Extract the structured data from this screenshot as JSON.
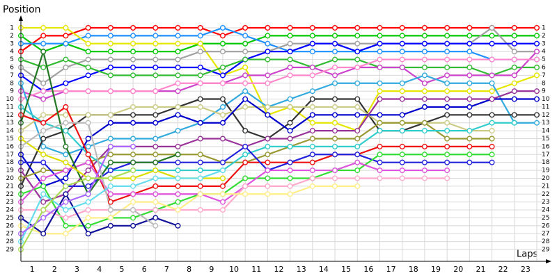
{
  "chart_data": {
    "type": "line",
    "y_label": "Position",
    "x_label": "Laps",
    "x": [
      0,
      1,
      2,
      3,
      4,
      5,
      6,
      7,
      8,
      9,
      10,
      11,
      12,
      13,
      14,
      15,
      16,
      17,
      18,
      19,
      20,
      21,
      22,
      23
    ],
    "xlim": [
      0,
      23
    ],
    "xticks": [
      {
        "value": 0.5,
        "label": "1"
      },
      {
        "value": 1.5,
        "label": "2"
      },
      {
        "value": 2.5,
        "label": "3"
      },
      {
        "value": 3.5,
        "label": "4"
      },
      {
        "value": 4.5,
        "label": "5"
      },
      {
        "value": 5.5,
        "label": "6"
      },
      {
        "value": 6.5,
        "label": "7"
      },
      {
        "value": 7.5,
        "label": "8"
      },
      {
        "value": 8.5,
        "label": "9"
      },
      {
        "value": 9.5,
        "label": "10"
      },
      {
        "value": 10.5,
        "label": "11"
      },
      {
        "value": 11.5,
        "label": "12"
      },
      {
        "value": 12.5,
        "label": "13"
      },
      {
        "value": 13.5,
        "label": "14"
      },
      {
        "value": 14.5,
        "label": "15"
      },
      {
        "value": 15.5,
        "label": "16"
      },
      {
        "value": 16.5,
        "label": "17"
      },
      {
        "value": 17.5,
        "label": "18"
      },
      {
        "value": 18.5,
        "label": "19"
      },
      {
        "value": 19.5,
        "label": "20"
      },
      {
        "value": 20.5,
        "label": "21"
      },
      {
        "value": 21.5,
        "label": "22"
      },
      {
        "value": 22.5,
        "label": "23"
      }
    ],
    "ylim": [
      1,
      29
    ],
    "y_inverted": true,
    "yticks": [
      1,
      2,
      3,
      4,
      5,
      6,
      7,
      8,
      9,
      10,
      11,
      12,
      13,
      14,
      15,
      16,
      17,
      18,
      19,
      20,
      21,
      22,
      23,
      24,
      25,
      26,
      27,
      28,
      29
    ],
    "grid": true,
    "series": [
      {
        "color": "#ff0000",
        "values": [
          4,
          2,
          2,
          1,
          1,
          1,
          1,
          1,
          1,
          2,
          1,
          1,
          1,
          1,
          1,
          1,
          1,
          1,
          1,
          1,
          1,
          1,
          1,
          1
        ]
      },
      {
        "color": "#00c800",
        "values": [
          2,
          4,
          3,
          4,
          4,
          4,
          4,
          4,
          3,
          3,
          3,
          2,
          2,
          2,
          2,
          2,
          2,
          2,
          2,
          2,
          2,
          2,
          2,
          2
        ]
      },
      {
        "color": "#1e90ff",
        "values": [
          3,
          3,
          3,
          2,
          2,
          2,
          2,
          2,
          2,
          1,
          2,
          3,
          4,
          4,
          4,
          4,
          4,
          4,
          4,
          4,
          4,
          5,
          5,
          5
        ]
      },
      {
        "color": "#e6e600",
        "values": [
          1,
          1,
          1,
          3,
          3,
          3,
          3,
          3,
          3,
          7,
          6,
          12,
          11,
          13,
          13,
          14,
          9,
          9,
          9,
          9,
          9,
          9,
          8,
          7
        ]
      },
      {
        "color": "#a0a0a0",
        "values": [
          6,
          8,
          6,
          5,
          5,
          5,
          5,
          5,
          4,
          4,
          4,
          4,
          3,
          3,
          3,
          3,
          3,
          3,
          3,
          3,
          3,
          1,
          4,
          4
        ]
      },
      {
        "color": "#0000ff",
        "values": [
          7,
          9,
          8,
          7,
          6,
          6,
          6,
          6,
          6,
          7,
          5,
          4,
          4,
          3,
          3,
          4,
          3,
          3,
          3,
          3,
          3,
          3,
          3,
          3
        ]
      },
      {
        "color": "#33bb33",
        "values": [
          5,
          6,
          5,
          6,
          7,
          7,
          7,
          7,
          7,
          6,
          5,
          5,
          5,
          6,
          5,
          5,
          6,
          6,
          6,
          6,
          6,
          7,
          6,
          6
        ]
      },
      {
        "color": "#cc44cc",
        "values": [
          9,
          10,
          9,
          9,
          9,
          9,
          9,
          9,
          8,
          8,
          7,
          7,
          6,
          6,
          7,
          6,
          6,
          6,
          8,
          7,
          7,
          7,
          7,
          4
        ]
      },
      {
        "color": "#ff88cc",
        "values": [
          10,
          9,
          9,
          9,
          9,
          9,
          9,
          8,
          8,
          8,
          8,
          8,
          7,
          7,
          6,
          6,
          5,
          5,
          5,
          5,
          5,
          5,
          5,
          5
        ]
      },
      {
        "color": "#33aadd",
        "values": [
          8,
          16,
          17,
          16,
          15,
          15,
          15,
          14,
          13,
          11,
          9,
          11,
          10,
          9,
          8,
          8,
          8,
          8,
          7,
          8,
          8,
          8,
          13,
          13
        ]
      },
      {
        "color": "#333333",
        "values": [
          21,
          15,
          14,
          12,
          12,
          12,
          12,
          11,
          10,
          10,
          14,
          15,
          13,
          10,
          10,
          10,
          14,
          14,
          13,
          12,
          12,
          12,
          12,
          12
        ]
      },
      {
        "color": "#cccc88",
        "values": [
          14,
          12,
          12,
          12,
          12,
          11,
          11,
          11,
          11,
          12,
          11,
          11,
          11,
          11,
          11,
          11,
          13,
          13,
          13,
          13,
          14,
          14,
          null,
          null
        ]
      },
      {
        "color": "#0000cc",
        "values": [
          17,
          21,
          20,
          15,
          13,
          13,
          13,
          12,
          13,
          13,
          10,
          12,
          14,
          12,
          12,
          12,
          12,
          12,
          11,
          11,
          11,
          10,
          10,
          10
        ]
      },
      {
        "color": "#993399",
        "values": [
          19,
          23,
          22,
          19,
          16,
          16,
          16,
          16,
          15,
          15,
          16,
          15,
          15,
          14,
          14,
          14,
          10,
          10,
          10,
          10,
          10,
          10,
          9,
          9
        ]
      },
      {
        "color": "#999933",
        "values": [
          20,
          19,
          19,
          18,
          17,
          17,
          17,
          17,
          17,
          18,
          18,
          17,
          16,
          15,
          15,
          15,
          13,
          13,
          13,
          15,
          15,
          15,
          null,
          null
        ]
      },
      {
        "color": "#33cccc",
        "values": [
          11,
          13,
          14,
          17,
          19,
          19,
          19,
          19,
          19,
          19,
          17,
          16,
          16,
          16,
          16,
          16,
          14,
          14,
          14,
          14,
          14,
          13,
          13,
          null
        ]
      },
      {
        "color": "#ee1111",
        "values": [
          12,
          13,
          11,
          17,
          23,
          22,
          21,
          21,
          21,
          21,
          18,
          18,
          18,
          18,
          17,
          17,
          16,
          16,
          16,
          16,
          16,
          16,
          null,
          null
        ]
      },
      {
        "color": "#2222dd",
        "values": [
          18,
          18,
          21,
          21,
          19,
          18,
          18,
          18,
          18,
          18,
          16,
          19,
          18,
          17,
          17,
          17,
          18,
          18,
          18,
          18,
          18,
          18,
          null,
          null
        ]
      },
      {
        "color": "#33dd33",
        "values": [
          22,
          21,
          26,
          26,
          25,
          25,
          24,
          23,
          22,
          22,
          20,
          20,
          20,
          20,
          19,
          19,
          17,
          17,
          17,
          17,
          17,
          17,
          null,
          null
        ]
      },
      {
        "color": "#dd55dd",
        "values": [
          23,
          20,
          19,
          18,
          22,
          22,
          22,
          22,
          22,
          23,
          21,
          19,
          19,
          19,
          19,
          18,
          19,
          19,
          19,
          19,
          null,
          null,
          null,
          null
        ]
      },
      {
        "color": "#ffaacc",
        "values": [
          24,
          24,
          25,
          24,
          24,
          24,
          24,
          24,
          24,
          24,
          21,
          21,
          21,
          20,
          20,
          20,
          20,
          20,
          20,
          20,
          null,
          null,
          null,
          null
        ]
      },
      {
        "color": "#ffee88",
        "values": [
          26,
          27,
          27,
          25,
          25,
          23,
          23,
          24,
          22,
          22,
          22,
          22,
          22,
          21,
          21,
          21,
          null,
          null,
          null,
          null,
          null,
          null,
          null,
          null
        ]
      },
      {
        "color": "#111199",
        "values": [
          25,
          27,
          22,
          27,
          26,
          26,
          25,
          26,
          null,
          null,
          null,
          null,
          null,
          null,
          null,
          null,
          null,
          null,
          null,
          null,
          null,
          null,
          null,
          null
        ]
      },
      {
        "color": "#227722",
        "values": [
          13,
          4,
          16,
          22,
          18,
          18,
          18,
          17,
          null,
          null,
          null,
          null,
          null,
          null,
          null,
          null,
          null,
          null,
          null,
          null,
          null,
          null,
          null,
          null
        ]
      },
      {
        "color": "#dddd00",
        "values": [
          15,
          17,
          18,
          20,
          20,
          20,
          19,
          20,
          20,
          20,
          null,
          null,
          null,
          null,
          null,
          null,
          null,
          null,
          null,
          null,
          null,
          null,
          null,
          null
        ]
      },
      {
        "color": "#bbbbbb",
        "values": [
          16,
          14,
          13,
          13,
          24,
          24,
          26,
          null,
          null,
          null,
          null,
          null,
          null,
          null,
          null,
          null,
          null,
          null,
          null,
          null,
          null,
          null,
          null,
          null
        ]
      },
      {
        "color": "#66ddee",
        "values": [
          28,
          22,
          24,
          23,
          21,
          21,
          20,
          20,
          20,
          19,
          null,
          null,
          null,
          null,
          null,
          null,
          null,
          null,
          null,
          null,
          null,
          null,
          null,
          null
        ]
      },
      {
        "color": "#aa66ff",
        "values": [
          27,
          25,
          23,
          22,
          16,
          16,
          null,
          null,
          null,
          null,
          null,
          null,
          null,
          null,
          null,
          null,
          null,
          null,
          null,
          null,
          null,
          null,
          null,
          null
        ]
      },
      {
        "color": "#aadd55",
        "values": [
          29,
          24,
          21,
          20,
          20,
          19,
          null,
          null,
          null,
          null,
          null,
          null,
          null,
          null,
          null,
          null,
          null,
          null,
          null,
          null,
          null,
          null,
          null,
          null
        ]
      }
    ]
  }
}
